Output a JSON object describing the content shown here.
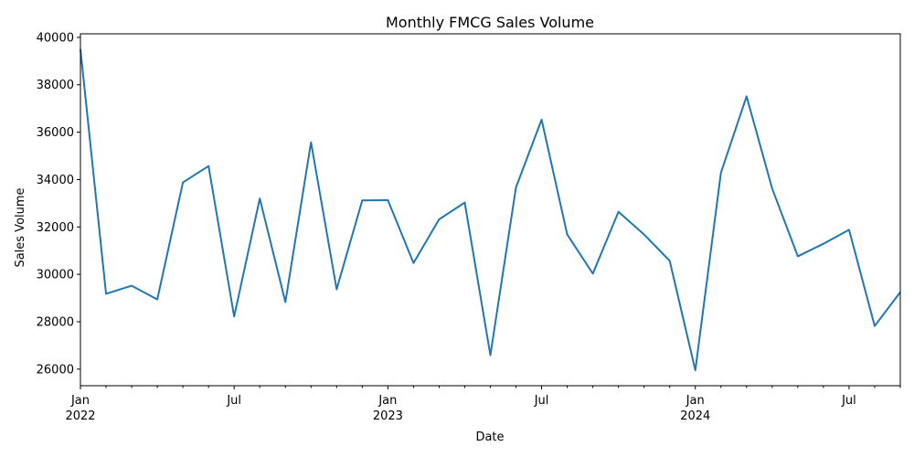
{
  "chart_data": {
    "type": "line",
    "title": "Monthly FMCG Sales Volume",
    "xlabel": "Date",
    "ylabel": "Sales Volume",
    "grid": false,
    "line_color": "#1f77b4",
    "xlim": [
      "2022-01",
      "2024-09"
    ],
    "ylim": [
      25300,
      40150
    ],
    "y_ticks": [
      26000,
      28000,
      30000,
      32000,
      34000,
      36000,
      38000,
      40000
    ],
    "x_major_ticks": [
      {
        "date": "2022-01",
        "label": "Jan",
        "sublabel": "2022"
      },
      {
        "date": "2022-07",
        "label": "Jul",
        "sublabel": ""
      },
      {
        "date": "2023-01",
        "label": "Jan",
        "sublabel": "2023"
      },
      {
        "date": "2023-07",
        "label": "Jul",
        "sublabel": ""
      },
      {
        "date": "2024-01",
        "label": "Jan",
        "sublabel": "2024"
      },
      {
        "date": "2024-07",
        "label": "Jul",
        "sublabel": ""
      }
    ],
    "x": [
      "2022-01",
      "2022-02",
      "2022-03",
      "2022-04",
      "2022-05",
      "2022-06",
      "2022-07",
      "2022-08",
      "2022-09",
      "2022-10",
      "2022-11",
      "2022-12",
      "2023-01",
      "2023-02",
      "2023-03",
      "2023-04",
      "2023-05",
      "2023-06",
      "2023-07",
      "2023-08",
      "2023-09",
      "2023-10",
      "2023-11",
      "2023-12",
      "2024-01",
      "2024-02",
      "2024-03",
      "2024-04",
      "2024-05",
      "2024-06",
      "2024-07",
      "2024-08",
      "2024-09"
    ],
    "series": [
      {
        "values": [
          39500,
          29180,
          29520,
          28940,
          33880,
          34570,
          28220,
          33200,
          28830,
          35570,
          29370,
          33120,
          33130,
          30480,
          32320,
          33030,
          26590,
          33670,
          36530,
          31680,
          30030,
          32640,
          31680,
          30570,
          25950,
          34290,
          37510,
          33620,
          30760,
          31290,
          31880,
          27820,
          29250
        ]
      }
    ]
  }
}
